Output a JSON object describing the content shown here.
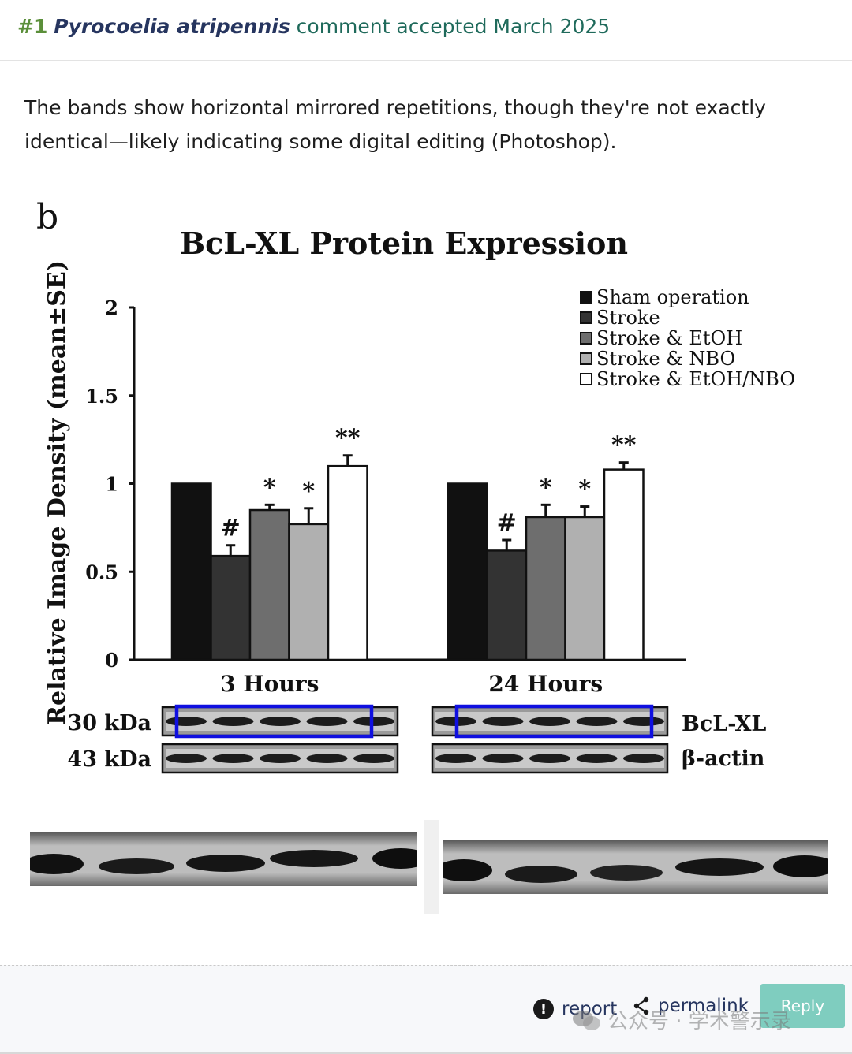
{
  "header": {
    "number": "#1",
    "species": "Pyrocoelia atripennis",
    "rest": "comment accepted March 2025"
  },
  "comment": {
    "text": "The bands show horizontal mirrored repetitions, though they're not exactly identical—likely indicating some digital editing (Photoshop)."
  },
  "figure": {
    "panel_letter": "b",
    "blot_labels": {
      "kda_30": "30 kDa",
      "kda_43": "43 kDa",
      "bclxl": "BcL-XL",
      "actin": "β-actin"
    },
    "highlight_color": "#1010e0"
  },
  "chart_data": {
    "type": "bar",
    "title": "BcL-XL Protein Expression",
    "ylabel": "Relative Image Density (mean±SE)",
    "xlabel": "",
    "ylim": [
      0,
      2
    ],
    "yticks": [
      "0",
      "0.5",
      "1",
      "1.5",
      "2"
    ],
    "categories": [
      "3 Hours",
      "24 Hours"
    ],
    "legend_position": "top-right",
    "series": [
      {
        "name": "Sham operation",
        "color": "#111111",
        "values": [
          1.0,
          1.0
        ],
        "errors": [
          0,
          0
        ],
        "annotations": [
          "",
          ""
        ]
      },
      {
        "name": "Stroke",
        "color": "#333333",
        "values": [
          0.59,
          0.62
        ],
        "errors": [
          0.06,
          0.06
        ],
        "annotations": [
          "#",
          "#"
        ]
      },
      {
        "name": "Stroke & EtOH",
        "color": "#6e6e6e",
        "values": [
          0.85,
          0.81
        ],
        "errors": [
          0.03,
          0.07
        ],
        "annotations": [
          "*",
          "*"
        ]
      },
      {
        "name": "Stroke & NBO",
        "color": "#b0b0b0",
        "values": [
          0.77,
          0.81
        ],
        "errors": [
          0.09,
          0.06
        ],
        "annotations": [
          "*",
          "*"
        ]
      },
      {
        "name": "Stroke & EtOH/NBO",
        "color": "#ffffff",
        "values": [
          1.1,
          1.08
        ],
        "errors": [
          0.06,
          0.04
        ],
        "annotations": [
          "**",
          "**"
        ]
      }
    ]
  },
  "footer": {
    "report_label": "report",
    "permalink_label": "permalink",
    "reply_label": "Reply",
    "watermark": "公众号 · 学术警示录"
  }
}
